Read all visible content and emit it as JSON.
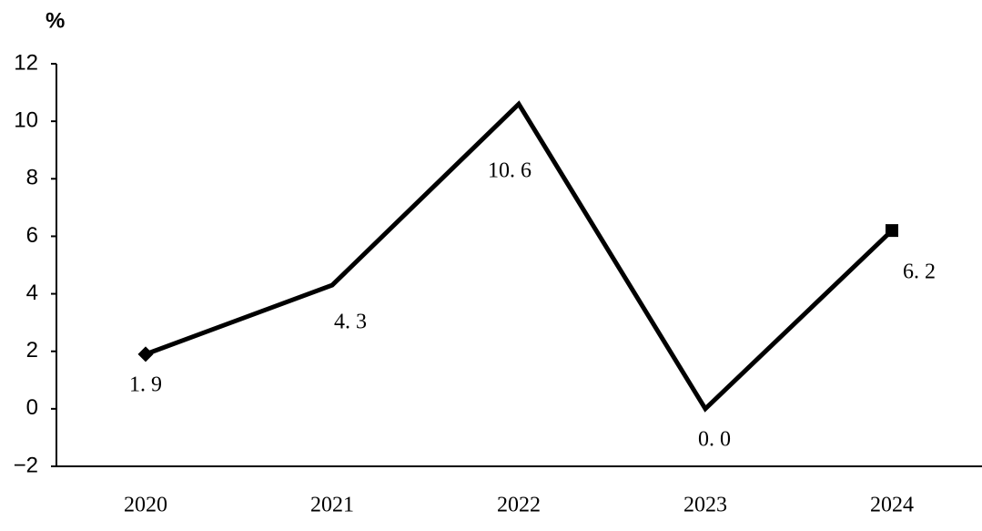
{
  "chart_data": {
    "type": "line",
    "y_label": "%",
    "categories": [
      "2020",
      "2021",
      "2022",
      "2023",
      "2024"
    ],
    "values": [
      1.9,
      4.3,
      10.6,
      0.0,
      6.2
    ],
    "value_labels": [
      "1. 9",
      "4. 3",
      "10. 6",
      "0. 0",
      "6. 2"
    ],
    "color": "#000000",
    "ylim": [
      -2,
      12
    ],
    "yticks": [
      {
        "value": -2,
        "label": "−2"
      },
      0,
      2,
      4,
      6,
      8,
      10,
      12
    ]
  }
}
